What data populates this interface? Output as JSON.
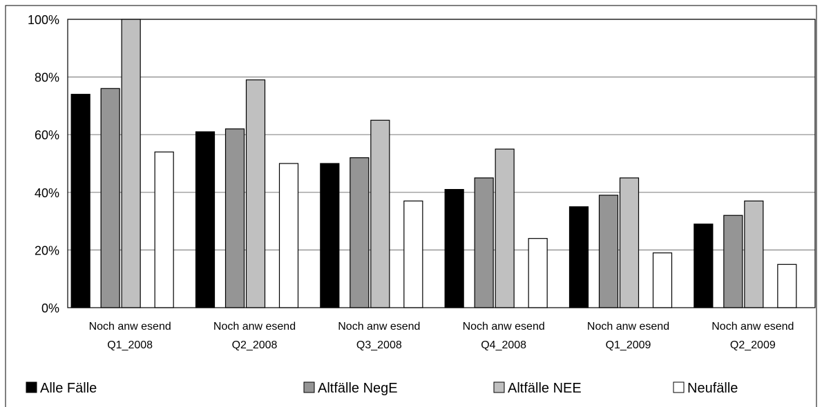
{
  "chart_data": {
    "type": "bar",
    "categories": [
      [
        "Noch anw esend",
        "Q1_2008"
      ],
      [
        "Noch anw esend",
        "Q2_2008"
      ],
      [
        "Noch anw esend",
        "Q3_2008"
      ],
      [
        "Noch anw esend",
        "Q4_2008"
      ],
      [
        "Noch anw esend",
        "Q1_2009"
      ],
      [
        "Noch anw esend",
        "Q2_2009"
      ]
    ],
    "series": [
      {
        "name": "Alle Fälle",
        "color": "#000000",
        "values": [
          74,
          61,
          50,
          41,
          35,
          29
        ]
      },
      {
        "name": "Altfälle NegE",
        "color": "#959595",
        "values": [
          76,
          62,
          52,
          45,
          39,
          32
        ]
      },
      {
        "name": "Altfälle NEE",
        "color": "#c0c0c0",
        "values": [
          100,
          79,
          65,
          55,
          45,
          37
        ]
      },
      {
        "name": "Neufälle",
        "color": "#ffffff",
        "values": [
          54,
          50,
          37,
          24,
          19,
          15
        ]
      }
    ],
    "yticks": [
      "0%",
      "20%",
      "40%",
      "60%",
      "80%",
      "100%"
    ],
    "ylim": [
      0,
      100
    ],
    "grid": true,
    "legend": "bottom",
    "title": "",
    "xlabel": "",
    "ylabel": ""
  }
}
